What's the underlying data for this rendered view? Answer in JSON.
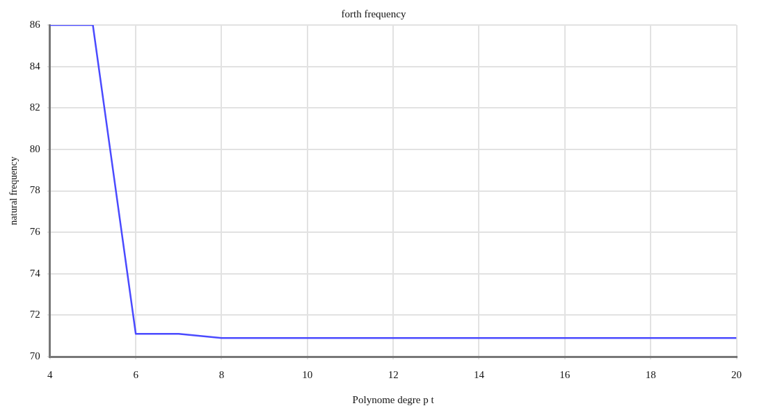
{
  "chart_data": {
    "type": "line",
    "title": "forth frequency",
    "xlabel": "Polynome degre p t",
    "ylabel": "natural frequency",
    "x": [
      4,
      5,
      6,
      7,
      8,
      10,
      12,
      14,
      16,
      18,
      20
    ],
    "series": [
      {
        "color": "#4a4aff",
        "values": [
          86,
          86,
          71.1,
          71.1,
          70.9,
          70.9,
          70.9,
          70.9,
          70.9,
          70.9,
          70.9
        ]
      }
    ],
    "xlim": [
      4,
      20
    ],
    "xticks": [
      4,
      6,
      8,
      10,
      12,
      14,
      16,
      18,
      20
    ],
    "ylim": [
      70,
      86
    ],
    "yticks": [
      70,
      72,
      74,
      76,
      78,
      80,
      82,
      84,
      86
    ],
    "grid": true,
    "legend": false,
    "marker": "none",
    "line_style": "solid"
  }
}
